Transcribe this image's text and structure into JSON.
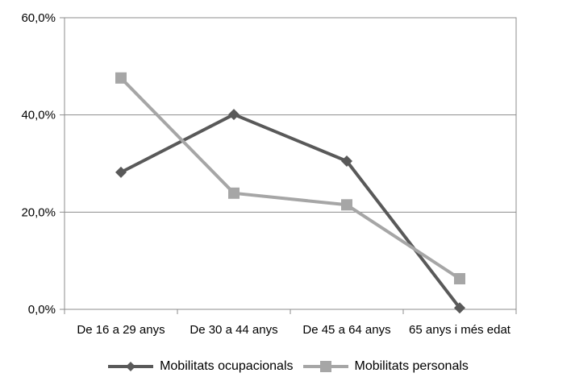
{
  "chart_data": {
    "type": "line",
    "categories": [
      "De 16 a 29 anys",
      "De 30 a 44 anys",
      "De 45 a 64 anys",
      "65 anys i més edat"
    ],
    "series": [
      {
        "name": "Mobilitats ocupacionals",
        "values": [
          28.2,
          40.1,
          30.5,
          0.3
        ],
        "color": "#595959",
        "marker": "diamond"
      },
      {
        "name": "Mobilitats personals",
        "values": [
          47.6,
          23.9,
          21.5,
          6.3
        ],
        "color": "#a6a6a6",
        "marker": "square"
      }
    ],
    "y_ticks": [
      "0,0%",
      "20,0%",
      "40,0%",
      "60,0%"
    ],
    "ylim": [
      0,
      60
    ],
    "grid": true,
    "legend_position": "bottom",
    "title": "",
    "xlabel": "",
    "ylabel": ""
  }
}
